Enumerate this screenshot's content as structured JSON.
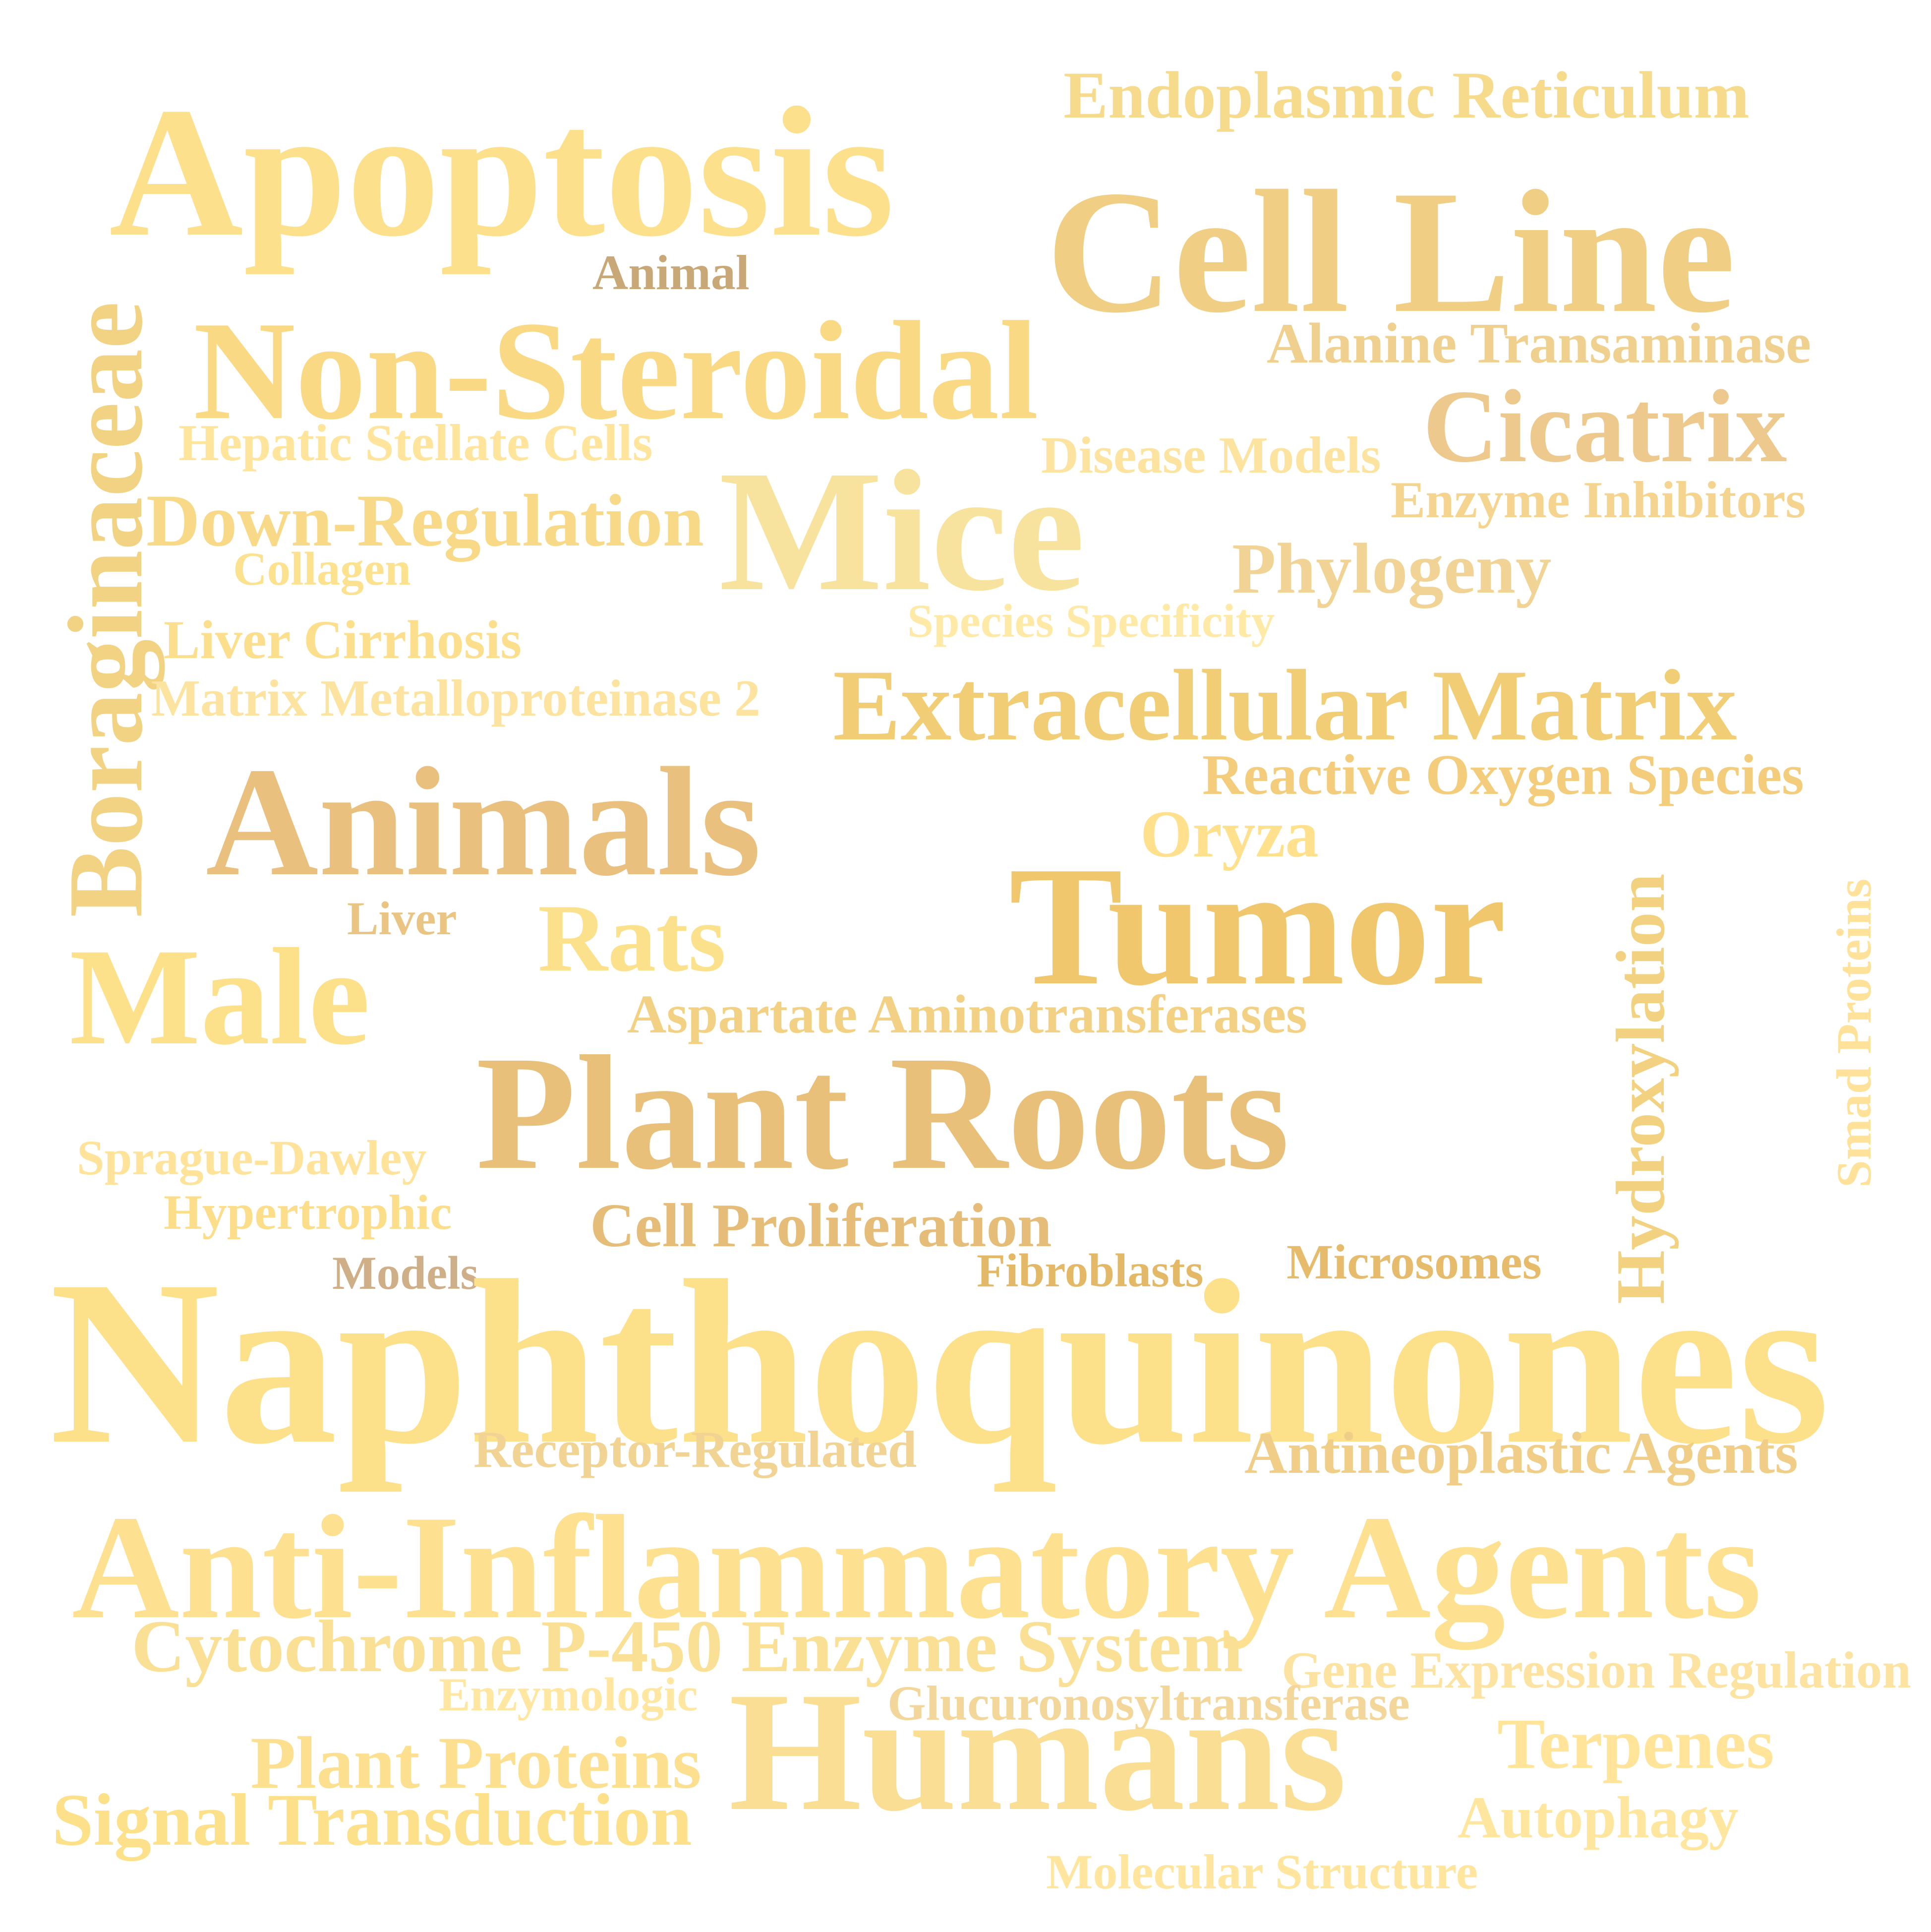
{
  "words": [
    {
      "text": "Apoptosis",
      "color": "#FCE08C"
    },
    {
      "text": "Endoplasmic Reticulum",
      "color": "#F7DB8D"
    },
    {
      "text": "Cell Line",
      "color": "#F0CF85"
    },
    {
      "text": "Animal",
      "color": "#C9A878"
    },
    {
      "text": "Boraginaceae",
      "color": "#F2D283"
    },
    {
      "text": "Non-Steroidal",
      "color": "#FAD985"
    },
    {
      "text": "Alanine Transaminase",
      "color": "#F0D08E"
    },
    {
      "text": "Hepatic Stellate Cells",
      "color": "#FFE49C"
    },
    {
      "text": "Disease Models",
      "color": "#FCE3A0"
    },
    {
      "text": "Cicatrix",
      "color": "#EDC98E"
    },
    {
      "text": "Mice",
      "color": "#F7E29E"
    },
    {
      "text": "Enzyme Inhibitors",
      "color": "#F4D48E"
    },
    {
      "text": "Down-Regulation",
      "color": "#F8D988"
    },
    {
      "text": "Collagen",
      "color": "#FCE18F"
    },
    {
      "text": "Phylogeny",
      "color": "#F1D495"
    },
    {
      "text": "Species Specificity",
      "color": "#FFE9A6"
    },
    {
      "text": "Liver Cirrhosis",
      "color": "#FCDF8C"
    },
    {
      "text": "Matrix Metalloproteinase 2",
      "color": "#FCE3A0"
    },
    {
      "text": "Extracellular Matrix",
      "color": "#F1CE76"
    },
    {
      "text": "Reactive Oxygen Species",
      "color": "#F3CD7C"
    },
    {
      "text": "Animals",
      "color": "#E9C07E"
    },
    {
      "text": "Oryza",
      "color": "#FFE08D"
    },
    {
      "text": "Hydroxylation",
      "color": "#F2D280"
    },
    {
      "text": "Smad Proteins",
      "color": "#FFE29A"
    },
    {
      "text": "Tumor",
      "color": "#F0C76C"
    },
    {
      "text": "Liver",
      "color": "#E9C482"
    },
    {
      "text": "Rats",
      "color": "#FCE18C"
    },
    {
      "text": "Male",
      "color": "#FDE18A"
    },
    {
      "text": "Aspartate Aminotransferases",
      "color": "#F3D184"
    },
    {
      "text": "Plant Roots",
      "color": "#E9C07A"
    },
    {
      "text": "Sprague-Dawley",
      "color": "#FFE39A"
    },
    {
      "text": "Hypertrophic",
      "color": "#FCDE8A"
    },
    {
      "text": "Cell Proliferation",
      "color": "#E5BD78"
    },
    {
      "text": "Models",
      "color": "#CFAF87"
    },
    {
      "text": "Fibroblasts",
      "color": "#E3B968"
    },
    {
      "text": "Microsomes",
      "color": "#E6BB6C"
    },
    {
      "text": "Naphthoquinones",
      "color": "#FDE08A"
    },
    {
      "text": "Receptor-Regulated",
      "color": "#F1D394"
    },
    {
      "text": "Antineoplastic Agents",
      "color": "#F0CE87"
    },
    {
      "text": "Anti-Inflammatory Agents",
      "color": "#FDE190"
    },
    {
      "text": "Cytochrome P-450 Enzyme System",
      "color": "#FAE095"
    },
    {
      "text": "Gene Expression Regulation",
      "color": "#FCE3A2"
    },
    {
      "text": "Enzymologic",
      "color": "#FFE7A2"
    },
    {
      "text": "Glucuronosyltransferase",
      "color": "#F3D69A"
    },
    {
      "text": "Humans",
      "color": "#F9DE94"
    },
    {
      "text": "Terpenes",
      "color": "#FFE49A"
    },
    {
      "text": "Plant Proteins",
      "color": "#FCE090"
    },
    {
      "text": "Autophagy",
      "color": "#FFE69E"
    },
    {
      "text": "Signal Transduction",
      "color": "#FDE08A"
    },
    {
      "text": "Molecular Structure",
      "color": "#FFE59E"
    }
  ]
}
